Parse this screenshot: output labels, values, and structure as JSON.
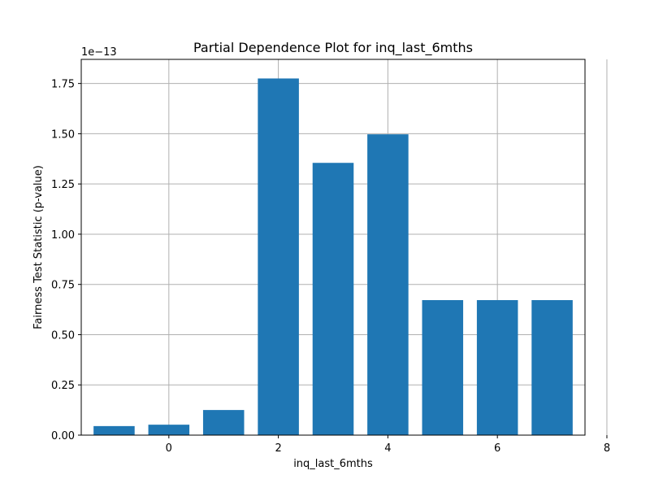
{
  "chart_data": {
    "type": "bar",
    "title": "Partial Dependence Plot for inq_last_6mths",
    "xlabel": "inq_last_6mths",
    "ylabel": "Fairness Test Statistic (p-value)",
    "y_offset_label": "1e−13",
    "x": [
      -1,
      0,
      1,
      2,
      3,
      4,
      5,
      6,
      7
    ],
    "values": [
      4.5e-15,
      5.2e-15,
      1.25e-14,
      1.775e-13,
      1.355e-13,
      1.497e-13,
      6.72e-14,
      6.72e-14,
      6.72e-14
    ],
    "xlim": [
      -1.6,
      7.6
    ],
    "ylim": [
      0,
      1.87e-13
    ],
    "x_ticks": [
      0,
      2,
      4,
      6,
      8
    ],
    "x_tick_labels": [
      "0",
      "2",
      "4",
      "6",
      "8"
    ],
    "y_ticks": [
      0,
      2.5e-14,
      5e-14,
      7.5e-14,
      1e-13,
      1.25e-13,
      1.5e-13,
      1.75e-13
    ],
    "y_tick_labels": [
      "0.00",
      "0.25",
      "0.50",
      "0.75",
      "1.00",
      "1.25",
      "1.50",
      "1.75"
    ],
    "grid": true,
    "bar_color": "#1f77b4"
  }
}
